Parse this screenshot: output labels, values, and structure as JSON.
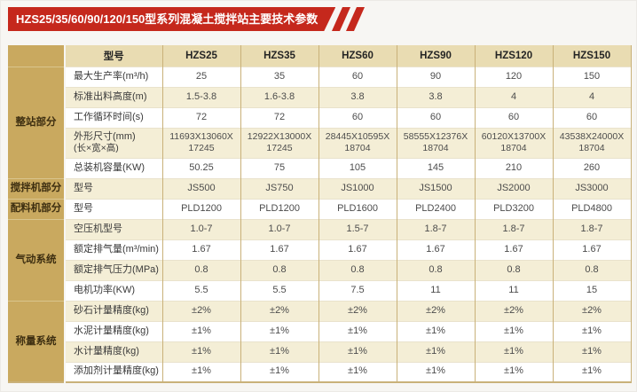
{
  "title": "HZS25/35/60/90/120/150型系列混凝土搅拌站主要技术参数",
  "colors": {
    "accent-red": "#c5281c",
    "gold": "#c9a95f",
    "header-beige": "#e9dcb2",
    "alt-beige": "#f4eed6",
    "border-tan": "#c9b179",
    "page-bg": "#f7f6f3"
  },
  "table": {
    "header": {
      "label": "型号",
      "models": [
        "HZS25",
        "HZS35",
        "HZS60",
        "HZS90",
        "HZS120",
        "HZS150"
      ]
    },
    "groups": [
      {
        "name": "整站部分",
        "rows": [
          {
            "label": "最大生产率(m³/h)",
            "values": [
              "25",
              "35",
              "60",
              "90",
              "120",
              "150"
            ]
          },
          {
            "label": "标准出料高度(m)",
            "values": [
              "1.5-3.8",
              "1.6-3.8",
              "3.8",
              "3.8",
              "4",
              "4"
            ]
          },
          {
            "label": "工作循环时间(s)",
            "values": [
              "72",
              "72",
              "60",
              "60",
              "60",
              "60"
            ]
          },
          {
            "label": "外形尺寸(mm)",
            "sublabel": "(长×宽×高)",
            "tall": true,
            "values": [
              "11693X13060X 17245",
              "12922X13000X 17245",
              "28445X10595X 18704",
              "58555X12376X 18704",
              "60120X13700X 18704",
              "43538X24000X 18704"
            ]
          },
          {
            "label": "总装机容量(KW)",
            "values": [
              "50.25",
              "75",
              "105",
              "145",
              "210",
              "260"
            ]
          }
        ]
      },
      {
        "name": "搅拌机部分",
        "rows": [
          {
            "label": "型号",
            "values": [
              "JS500",
              "JS750",
              "JS1000",
              "JS1500",
              "JS2000",
              "JS3000"
            ]
          }
        ]
      },
      {
        "name": "配料机部分",
        "rows": [
          {
            "label": "型号",
            "values": [
              "PLD1200",
              "PLD1200",
              "PLD1600",
              "PLD2400",
              "PLD3200",
              "PLD4800"
            ]
          }
        ]
      },
      {
        "name": "气动系统",
        "rows": [
          {
            "label": "空压机型号",
            "values": [
              "1.0-7",
              "1.0-7",
              "1.5-7",
              "1.8-7",
              "1.8-7",
              "1.8-7"
            ]
          },
          {
            "label": "额定排气量(m³/min)",
            "values": [
              "1.67",
              "1.67",
              "1.67",
              "1.67",
              "1.67",
              "1.67"
            ]
          },
          {
            "label": "额定排气压力(MPa)",
            "values": [
              "0.8",
              "0.8",
              "0.8",
              "0.8",
              "0.8",
              "0.8"
            ]
          },
          {
            "label": "电机功率(KW)",
            "values": [
              "5.5",
              "5.5",
              "7.5",
              "11",
              "11",
              "15"
            ]
          }
        ]
      },
      {
        "name": "称量系统",
        "rows": [
          {
            "label": "砂石计量精度(kg)",
            "values": [
              "±2%",
              "±2%",
              "±2%",
              "±2%",
              "±2%",
              "±2%"
            ]
          },
          {
            "label": "水泥计量精度(kg)",
            "values": [
              "±1%",
              "±1%",
              "±1%",
              "±1%",
              "±1%",
              "±1%"
            ]
          },
          {
            "label": "水计量精度(kg)",
            "values": [
              "±1%",
              "±1%",
              "±1%",
              "±1%",
              "±1%",
              "±1%"
            ]
          },
          {
            "label": "添加剂计量精度(kg)",
            "values": [
              "±1%",
              "±1%",
              "±1%",
              "±1%",
              "±1%",
              "±1%"
            ]
          }
        ]
      }
    ]
  }
}
